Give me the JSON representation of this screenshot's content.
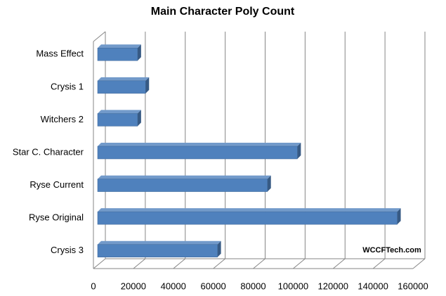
{
  "chart_data": {
    "type": "bar3d_horizontal",
    "title": "Main Character Poly Count",
    "categories": [
      "Mass Effect",
      "Crysis 1",
      "Witchers 2",
      "Star C. Character",
      "Ryse Current",
      "Ryse Original",
      "Crysis 3"
    ],
    "values": [
      20000,
      24000,
      20000,
      100000,
      85000,
      150000,
      60000
    ],
    "color": "#4f81bd",
    "xlim": [
      0,
      160000
    ],
    "xticks": [
      0,
      20000,
      40000,
      60000,
      80000,
      100000,
      120000,
      140000,
      160000
    ],
    "grid": true,
    "annotation": "WCCFTech.com"
  }
}
